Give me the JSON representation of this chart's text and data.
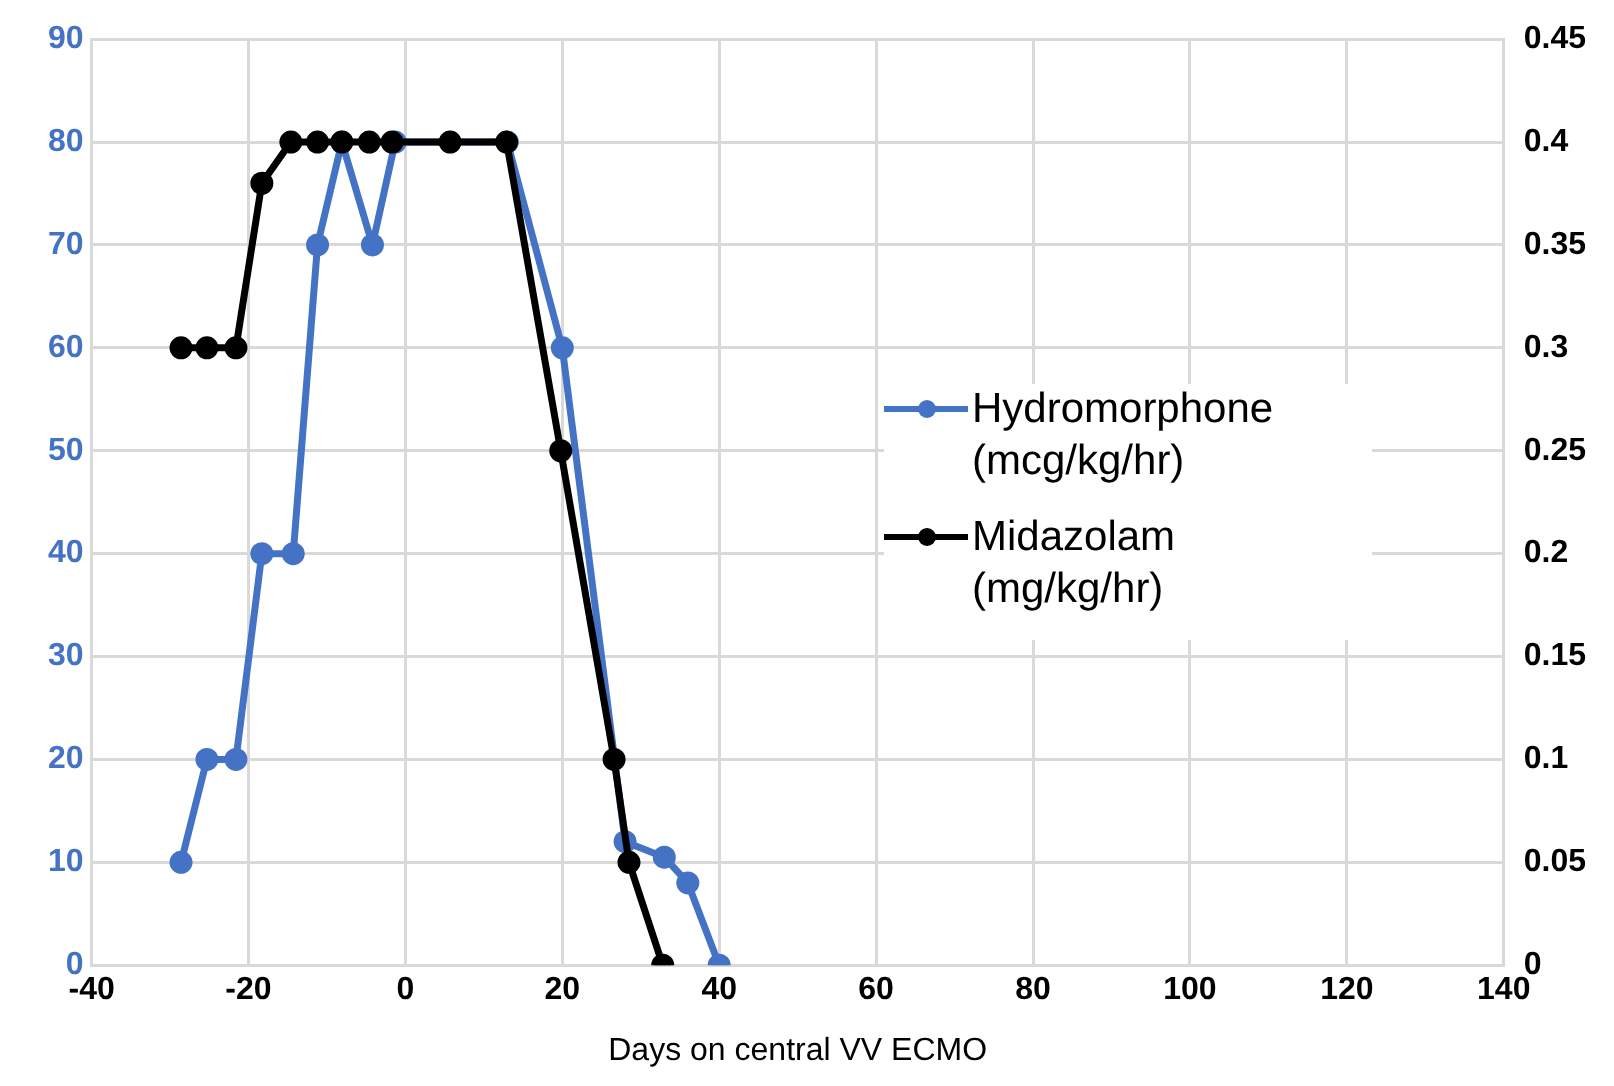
{
  "chart_data": {
    "type": "line",
    "xlabel": "Days on central VV ECMO",
    "xlim": [
      -40,
      140
    ],
    "xticks": [
      -40,
      -20,
      0,
      20,
      40,
      60,
      80,
      100,
      120,
      140
    ],
    "ylim": [
      0,
      90
    ],
    "yticks": [
      0,
      10,
      20,
      30,
      40,
      50,
      60,
      70,
      80,
      90
    ],
    "y2lim": [
      0,
      0.45
    ],
    "y2ticks": [
      0,
      0.05,
      0.1,
      0.15,
      0.2,
      0.25,
      0.3,
      0.35,
      0.4,
      0.45
    ],
    "grid": true,
    "legend": "right",
    "marker": "circle",
    "line_style": "solid",
    "series": [
      {
        "name": "Hydromorphone (mcg/kg/hr)",
        "color": "#4472c4",
        "axis": "y",
        "x": [
          -28.6,
          -25.3,
          -21.6,
          -18.3,
          -14.3,
          -11.2,
          -8.1,
          -4.2,
          -1.3,
          13,
          20,
          28,
          33,
          36,
          40
        ],
        "values": [
          10,
          20,
          20,
          40,
          40,
          70,
          80,
          70,
          80,
          80,
          60,
          12,
          10.5,
          8,
          0
        ]
      },
      {
        "name": "Midazolam (mg/kg/hr)",
        "color": "#000000",
        "axis": "y2",
        "x": [
          -28.6,
          -25.3,
          -21.6,
          -18.3,
          -14.6,
          -11.2,
          -8.1,
          -4.6,
          -1.7,
          5.7,
          12.9,
          19.8,
          26.6,
          28.5,
          32.8
        ],
        "values": [
          0.3,
          0.3,
          0.3,
          0.38,
          0.4,
          0.4,
          0.4,
          0.4,
          0.4,
          0.4,
          0.4,
          0.25,
          0.1,
          0.05,
          0
        ]
      }
    ]
  }
}
